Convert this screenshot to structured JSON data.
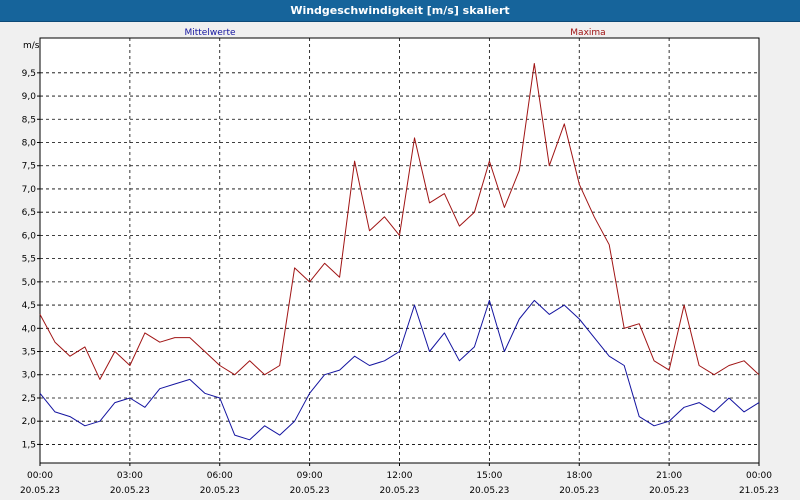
{
  "window": {
    "title": "Windgeschwindigkeit [m/s] skaliert"
  },
  "chart_data": {
    "type": "line",
    "title": "Windgeschwindigkeit [m/s] skaliert",
    "ylabel": "m/s",
    "ylim": [
      1.1,
      10.25
    ],
    "xlim": [
      0,
      24
    ],
    "grid": true,
    "y_ticks": [
      "1,5",
      "2,0",
      "2,5",
      "3,0",
      "3,5",
      "4,0",
      "4,5",
      "5,0",
      "5,5",
      "6,0",
      "6,5",
      "7,0",
      "7,5",
      "8,0",
      "8,5",
      "9,0",
      "9,5"
    ],
    "x_ticks": [
      {
        "time": "00:00",
        "date": "20.05.23"
      },
      {
        "time": "03:00",
        "date": "20.05.23"
      },
      {
        "time": "06:00",
        "date": "20.05.23"
      },
      {
        "time": "09:00",
        "date": "20.05.23"
      },
      {
        "time": "12:00",
        "date": "20.05.23"
      },
      {
        "time": "15:00",
        "date": "20.05.23"
      },
      {
        "time": "18:00",
        "date": "20.05.23"
      },
      {
        "time": "21:00",
        "date": "20.05.23"
      },
      {
        "time": "00:00",
        "date": "21.05.23"
      }
    ],
    "series": [
      {
        "name": "Mittelwerte",
        "color": "#1414a0",
        "x": [
          0,
          0.5,
          1,
          1.5,
          2,
          2.5,
          3,
          3.5,
          4,
          4.5,
          5,
          5.5,
          6,
          6.5,
          7,
          7.5,
          8,
          8.5,
          9,
          9.5,
          10,
          10.5,
          11,
          11.5,
          12,
          12.5,
          13,
          13.5,
          14,
          14.5,
          15,
          15.5,
          16,
          16.5,
          17,
          17.5,
          18,
          18.5,
          19,
          19.5,
          20,
          20.5,
          21,
          21.5,
          22,
          22.5,
          23,
          23.5,
          24
        ],
        "values": [
          2.6,
          2.2,
          2.1,
          1.9,
          2.0,
          2.4,
          2.5,
          2.3,
          2.7,
          2.8,
          2.9,
          2.6,
          2.5,
          1.7,
          1.6,
          1.9,
          1.7,
          2.0,
          2.6,
          3.0,
          3.1,
          3.4,
          3.2,
          3.3,
          3.5,
          4.5,
          3.5,
          3.9,
          3.3,
          3.6,
          4.6,
          3.5,
          4.2,
          4.6,
          4.3,
          4.5,
          4.2,
          3.8,
          3.4,
          3.2,
          2.1,
          1.9,
          2.0,
          2.3,
          2.4,
          2.2,
          2.5,
          2.2,
          2.4
        ]
      },
      {
        "name": "Maxima",
        "color": "#a01414",
        "x": [
          0,
          0.5,
          1,
          1.5,
          2,
          2.5,
          3,
          3.5,
          4,
          4.5,
          5,
          5.5,
          6,
          6.5,
          7,
          7.5,
          8,
          8.5,
          9,
          9.5,
          10,
          10.5,
          11,
          11.5,
          12,
          12.5,
          13,
          13.5,
          14,
          14.5,
          15,
          15.5,
          16,
          16.5,
          17,
          17.5,
          18,
          18.5,
          19,
          19.5,
          20,
          20.5,
          21,
          21.5,
          22,
          22.5,
          23,
          23.5,
          24
        ],
        "values": [
          4.3,
          3.7,
          3.4,
          3.6,
          2.9,
          3.5,
          3.2,
          3.9,
          3.7,
          3.8,
          3.8,
          3.5,
          3.2,
          3.0,
          3.3,
          3.0,
          3.2,
          5.3,
          5.0,
          5.4,
          5.1,
          7.6,
          6.1,
          6.4,
          6.0,
          8.1,
          6.7,
          6.9,
          6.2,
          6.5,
          7.6,
          6.6,
          7.4,
          9.7,
          7.5,
          8.4,
          7.1,
          6.4,
          5.8,
          4.0,
          4.1,
          3.3,
          3.1,
          4.5,
          3.2,
          3.0,
          3.2,
          3.3,
          3.0
        ]
      }
    ]
  }
}
